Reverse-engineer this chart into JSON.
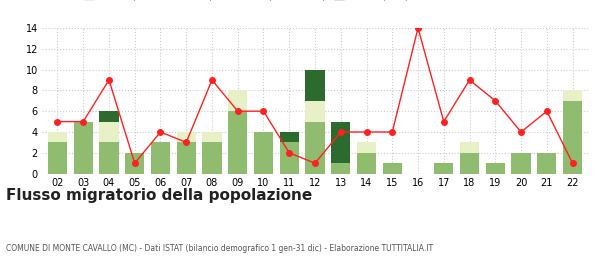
{
  "years": [
    "02",
    "03",
    "04",
    "05",
    "06",
    "07",
    "08",
    "09",
    "10",
    "11",
    "12",
    "13",
    "14",
    "15",
    "16",
    "17",
    "18",
    "19",
    "20",
    "21",
    "22"
  ],
  "iscritti_altri_comuni": [
    3,
    5,
    3,
    2,
    3,
    3,
    3,
    6,
    4,
    3,
    5,
    1,
    2,
    1,
    0,
    1,
    2,
    1,
    2,
    2,
    7
  ],
  "iscritti_estero": [
    1,
    0,
    2,
    0,
    0,
    1,
    1,
    2,
    0,
    0,
    2,
    0,
    1,
    0,
    0,
    0,
    1,
    0,
    0,
    0,
    1
  ],
  "iscritti_altri": [
    0,
    0,
    1,
    0,
    0,
    0,
    0,
    0,
    0,
    1,
    3,
    4,
    0,
    0,
    0,
    0,
    0,
    0,
    0,
    0,
    0
  ],
  "cancellati": [
    5,
    5,
    9,
    1,
    4,
    3,
    9,
    6,
    6,
    2,
    1,
    4,
    4,
    4,
    14,
    5,
    9,
    7,
    4,
    6,
    1
  ],
  "color_altri_comuni": "#8fbc6e",
  "color_estero": "#e8f0c8",
  "color_altri": "#2d6a2d",
  "color_cancellati": "#ff2020",
  "bg_color": "#ffffff",
  "grid_color": "#cccccc",
  "ylim": [
    0,
    14
  ],
  "yticks": [
    0,
    2,
    4,
    6,
    8,
    10,
    12,
    14
  ],
  "title": "Flusso migratorio della popolazione",
  "subtitle": "COMUNE DI MONTE CAVALLO (MC) - Dati ISTAT (bilancio demografico 1 gen-31 dic) - Elaborazione TUTTITALIA.IT"
}
